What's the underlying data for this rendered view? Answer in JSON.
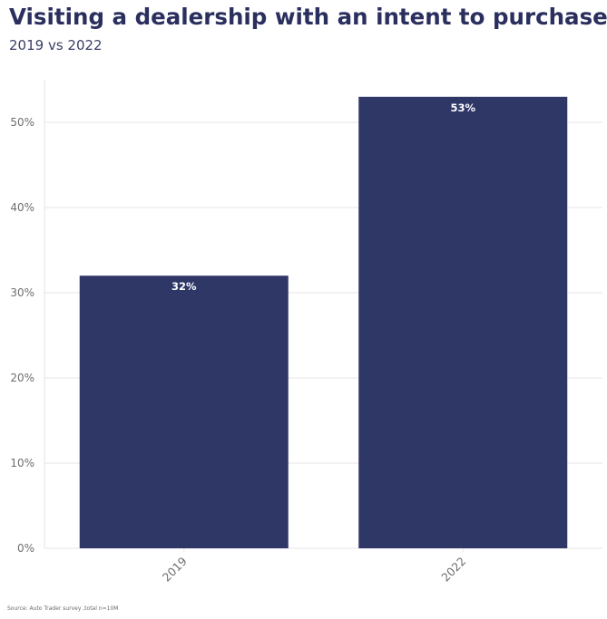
{
  "chart_data": {
    "type": "bar",
    "title": "Visiting a dealership with an intent to purchase",
    "subtitle": "2019 vs 2022",
    "categories": [
      "2019",
      "2022"
    ],
    "values": [
      32,
      53
    ],
    "data_labels": [
      "32%",
      "53%"
    ],
    "xlabel": "",
    "ylabel": "",
    "ylim": [
      0,
      55
    ],
    "yticks": [
      0,
      10,
      20,
      30,
      40,
      50
    ],
    "ytick_labels": [
      "0%",
      "10%",
      "20%",
      "30%",
      "40%",
      "50%"
    ],
    "grid": true,
    "legend": "none",
    "bar_color": "#2e3766",
    "source": "Source: Auto Trader survey ,total n=10M"
  }
}
